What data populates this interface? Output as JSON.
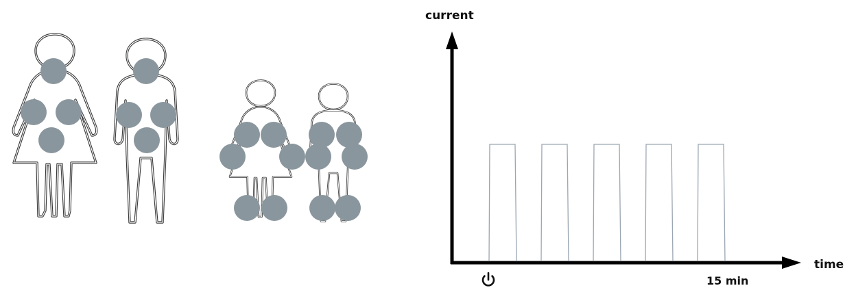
{
  "colors": {
    "pad": "#8a969d",
    "outline": "#3a3a3a",
    "axis": "#000000",
    "pulse": "#9aa6b2"
  },
  "figures": [
    {
      "name": "adult-female-figure",
      "pads": 4
    },
    {
      "name": "adult-male-figure",
      "pads": 4
    },
    {
      "name": "child-female-figure",
      "pads": 6
    },
    {
      "name": "child-male-figure",
      "pads": 6
    }
  ],
  "chart": {
    "y_label": "current",
    "x_label": "time",
    "start_icon": "power-icon",
    "end_label": "15 min",
    "pulses": 5
  }
}
